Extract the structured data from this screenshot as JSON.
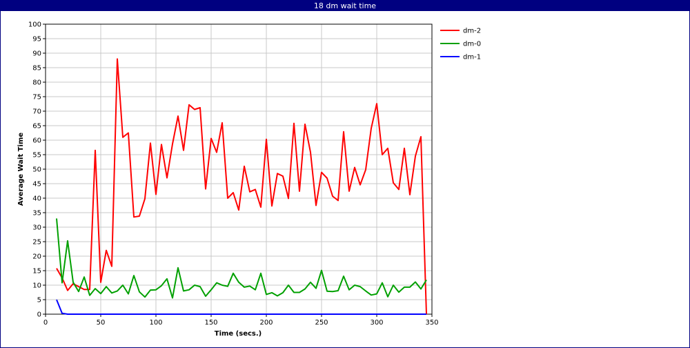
{
  "window": {
    "title": "18 dm wait time"
  },
  "chart_data": {
    "type": "line",
    "title": "18 dm wait time",
    "xlabel": "Time (secs.)",
    "ylabel": "Average Wait Time",
    "xlim": [
      0,
      350
    ],
    "ylim": [
      0,
      100
    ],
    "xticks": [
      0,
      50,
      100,
      150,
      200,
      250,
      300,
      350
    ],
    "yticks": [
      0,
      5,
      10,
      15,
      20,
      25,
      30,
      35,
      40,
      45,
      50,
      55,
      60,
      65,
      70,
      75,
      80,
      85,
      90,
      95,
      100
    ],
    "grid": true,
    "legend": "right",
    "series": [
      {
        "name": "dm-2",
        "color": "#ff0000",
        "points": [
          [
            10,
            15.8
          ],
          [
            15,
            12.5
          ],
          [
            20,
            8.2
          ],
          [
            25,
            10.5
          ],
          [
            30,
            9.5
          ],
          [
            35,
            8.5
          ],
          [
            40,
            8.5
          ],
          [
            45,
            56.5
          ],
          [
            50,
            11.0
          ],
          [
            55,
            22.0
          ],
          [
            60,
            16.5
          ],
          [
            65,
            88.0
          ],
          [
            70,
            61.0
          ],
          [
            75,
            62.5
          ],
          [
            80,
            33.5
          ],
          [
            85,
            33.8
          ],
          [
            90,
            39.8
          ],
          [
            95,
            59.0
          ],
          [
            100,
            41.3
          ],
          [
            105,
            58.5
          ],
          [
            110,
            47.0
          ],
          [
            115,
            58.7
          ],
          [
            120,
            68.3
          ],
          [
            125,
            56.5
          ],
          [
            130,
            72.2
          ],
          [
            135,
            70.6
          ],
          [
            140,
            71.2
          ],
          [
            145,
            43.2
          ],
          [
            150,
            60.6
          ],
          [
            155,
            55.8
          ],
          [
            160,
            66.0
          ],
          [
            165,
            40.0
          ],
          [
            170,
            41.9
          ],
          [
            175,
            35.9
          ],
          [
            180,
            51.0
          ],
          [
            185,
            42.2
          ],
          [
            190,
            43.0
          ],
          [
            195,
            36.9
          ],
          [
            200,
            60.3
          ],
          [
            205,
            37.3
          ],
          [
            210,
            48.5
          ],
          [
            215,
            47.6
          ],
          [
            220,
            39.9
          ],
          [
            225,
            65.8
          ],
          [
            230,
            42.4
          ],
          [
            235,
            65.5
          ],
          [
            240,
            55.8
          ],
          [
            245,
            37.5
          ],
          [
            250,
            48.9
          ],
          [
            255,
            46.9
          ],
          [
            260,
            40.7
          ],
          [
            265,
            39.2
          ],
          [
            270,
            62.9
          ],
          [
            275,
            42.4
          ],
          [
            280,
            50.6
          ],
          [
            285,
            44.6
          ],
          [
            290,
            49.8
          ],
          [
            295,
            64.1
          ],
          [
            300,
            72.6
          ],
          [
            305,
            55.0
          ],
          [
            310,
            57.2
          ],
          [
            315,
            45.3
          ],
          [
            320,
            43.0
          ],
          [
            325,
            57.2
          ],
          [
            330,
            41.2
          ],
          [
            335,
            54.5
          ],
          [
            340,
            61.2
          ],
          [
            345,
            0
          ]
        ]
      },
      {
        "name": "dm-0",
        "color": "#00a000",
        "points": [
          [
            10,
            33.0
          ],
          [
            15,
            10.8
          ],
          [
            20,
            25.3
          ],
          [
            25,
            11.0
          ],
          [
            30,
            7.8
          ],
          [
            35,
            12.8
          ],
          [
            40,
            6.5
          ],
          [
            45,
            8.8
          ],
          [
            50,
            7.1
          ],
          [
            55,
            9.5
          ],
          [
            60,
            7.3
          ],
          [
            65,
            8.0
          ],
          [
            70,
            10.0
          ],
          [
            75,
            7.0
          ],
          [
            80,
            13.3
          ],
          [
            85,
            7.7
          ],
          [
            90,
            5.9
          ],
          [
            95,
            8.3
          ],
          [
            100,
            8.4
          ],
          [
            105,
            9.8
          ],
          [
            110,
            12.2
          ],
          [
            115,
            5.6
          ],
          [
            120,
            16.0
          ],
          [
            125,
            8.0
          ],
          [
            130,
            8.4
          ],
          [
            135,
            10.0
          ],
          [
            140,
            9.5
          ],
          [
            145,
            6.2
          ],
          [
            150,
            8.4
          ],
          [
            155,
            10.8
          ],
          [
            160,
            10.0
          ],
          [
            165,
            9.6
          ],
          [
            170,
            14.1
          ],
          [
            175,
            11.0
          ],
          [
            180,
            9.3
          ],
          [
            185,
            9.7
          ],
          [
            190,
            8.4
          ],
          [
            195,
            14.1
          ],
          [
            200,
            6.8
          ],
          [
            205,
            7.4
          ],
          [
            210,
            6.3
          ],
          [
            215,
            7.4
          ],
          [
            220,
            10.0
          ],
          [
            225,
            7.5
          ],
          [
            230,
            7.5
          ],
          [
            235,
            8.7
          ],
          [
            240,
            11.0
          ],
          [
            245,
            8.9
          ],
          [
            250,
            15.1
          ],
          [
            255,
            7.9
          ],
          [
            260,
            7.8
          ],
          [
            265,
            8.1
          ],
          [
            270,
            13.1
          ],
          [
            275,
            8.4
          ],
          [
            280,
            10.0
          ],
          [
            285,
            9.5
          ],
          [
            290,
            8.0
          ],
          [
            295,
            6.6
          ],
          [
            300,
            7.0
          ],
          [
            305,
            10.8
          ],
          [
            310,
            6.0
          ],
          [
            315,
            10.0
          ],
          [
            320,
            7.6
          ],
          [
            325,
            9.3
          ],
          [
            330,
            9.3
          ],
          [
            335,
            11.1
          ],
          [
            340,
            8.7
          ],
          [
            345,
            11.8
          ]
        ]
      },
      {
        "name": "dm-1",
        "color": "#0000ff",
        "points": [
          [
            10,
            5.0
          ],
          [
            15,
            0.3
          ],
          [
            20,
            0
          ],
          [
            345,
            0
          ]
        ]
      }
    ]
  }
}
